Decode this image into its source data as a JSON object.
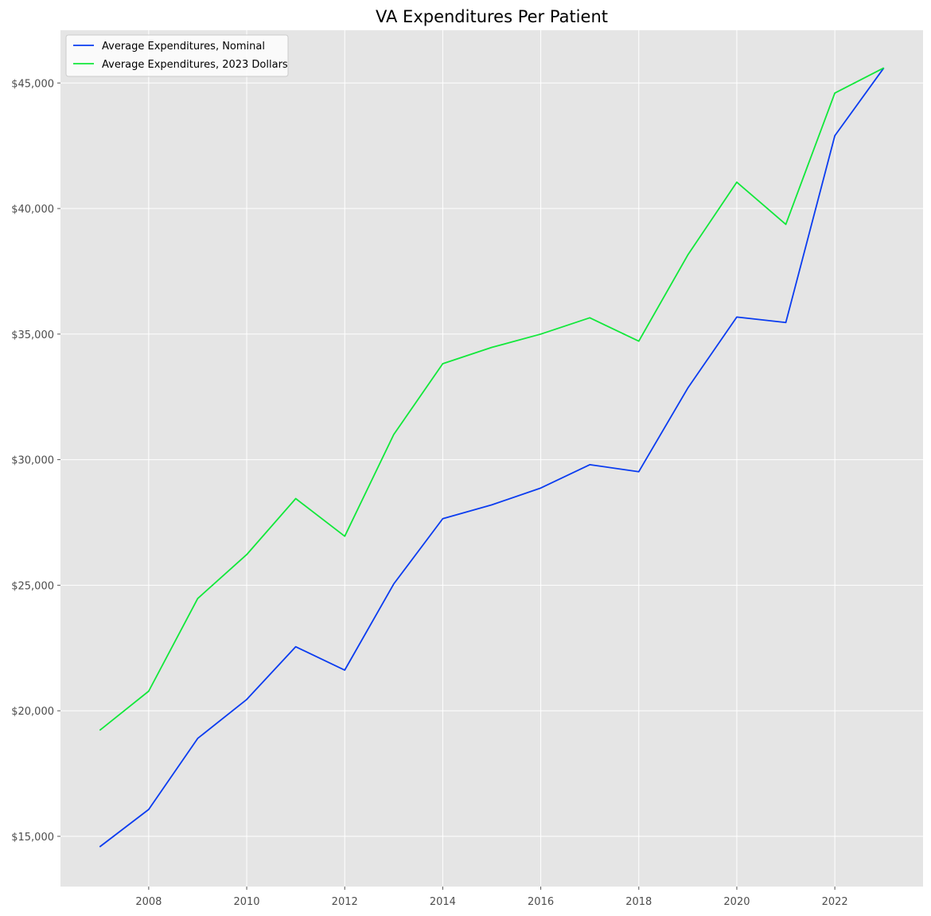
{
  "chart_data": {
    "type": "line",
    "title": "VA Expenditures Per Patient",
    "xlabel": "",
    "ylabel": "",
    "x": [
      2007,
      2008,
      2009,
      2010,
      2011,
      2012,
      2013,
      2014,
      2015,
      2016,
      2017,
      2018,
      2019,
      2020,
      2021,
      2022,
      2023
    ],
    "series": [
      {
        "name": "Average Expenditures, Nominal",
        "color": "#0a3cf0",
        "values": [
          14580,
          16070,
          18900,
          20450,
          22550,
          21620,
          25050,
          27650,
          28200,
          28870,
          29800,
          29520,
          32850,
          35680,
          35460,
          42900,
          45600
        ]
      },
      {
        "name": "Average Expenditures, 2023 Dollars",
        "color": "#11e83a",
        "values": [
          19220,
          20780,
          24470,
          26220,
          28450,
          26950,
          31000,
          33820,
          34470,
          35000,
          35650,
          34720,
          38150,
          41050,
          39370,
          44600,
          45600
        ]
      }
    ],
    "xlim": [
      2006.2,
      2023.8
    ],
    "ylim": [
      13000,
      47100
    ],
    "x_ticks": [
      2008,
      2010,
      2012,
      2014,
      2016,
      2018,
      2020,
      2022
    ],
    "x_tick_labels": [
      "2008",
      "2010",
      "2012",
      "2014",
      "2016",
      "2018",
      "2020",
      "2022"
    ],
    "y_ticks": [
      15000,
      20000,
      25000,
      30000,
      35000,
      40000,
      45000
    ],
    "y_tick_labels": [
      "$15,000",
      "$20,000",
      "$25,000",
      "$30,000",
      "$35,000",
      "$40,000",
      "$45,000"
    ],
    "grid": true,
    "legend_position": "top-left",
    "plot_background": "#e5e5e5",
    "grid_color": "#ffffff"
  }
}
